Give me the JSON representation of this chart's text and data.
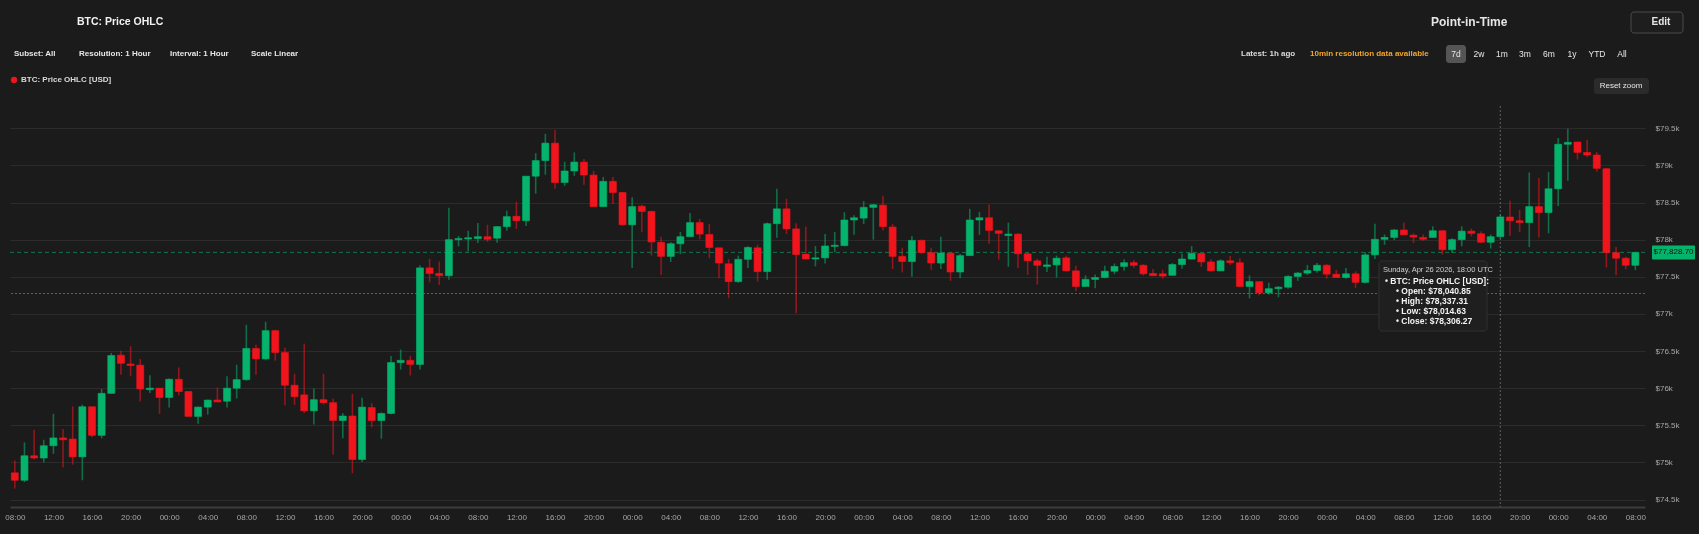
{
  "chart_data": {
    "type": "candlestick",
    "title": "BTC: Price OHLC",
    "legend": "top left",
    "grid": "y",
    "x": [
      "2026-04-20T08:00",
      "2026-04-20T09:00",
      "2026-04-20T10:00",
      "2026-04-20T11:00",
      "2026-04-20T12:00",
      "2026-04-20T13:00",
      "2026-04-20T14:00",
      "2026-04-20T15:00",
      "2026-04-20T16:00",
      "2026-04-20T17:00",
      "2026-04-20T18:00",
      "2026-04-20T19:00",
      "2026-04-20T20:00",
      "2026-04-20T21:00",
      "2026-04-20T22:00",
      "2026-04-20T23:00",
      "2026-04-21T00:00",
      "2026-04-21T01:00",
      "2026-04-21T02:00",
      "2026-04-21T03:00",
      "2026-04-21T04:00",
      "2026-04-21T05:00",
      "2026-04-21T06:00",
      "2026-04-21T07:00",
      "2026-04-21T08:00",
      "2026-04-21T09:00",
      "2026-04-21T10:00",
      "2026-04-21T11:00",
      "2026-04-21T12:00",
      "2026-04-21T13:00",
      "2026-04-21T14:00",
      "2026-04-21T15:00",
      "2026-04-21T16:00",
      "2026-04-21T17:00",
      "2026-04-21T18:00",
      "2026-04-21T19:00",
      "2026-04-21T20:00",
      "2026-04-21T21:00",
      "2026-04-21T22:00",
      "2026-04-21T23:00",
      "2026-04-22T00:00",
      "2026-04-22T01:00",
      "2026-04-22T02:00",
      "2026-04-22T03:00",
      "2026-04-22T04:00",
      "2026-04-22T05:00",
      "2026-04-22T06:00",
      "2026-04-22T07:00",
      "2026-04-22T08:00",
      "2026-04-22T09:00",
      "2026-04-22T10:00",
      "2026-04-22T11:00",
      "2026-04-22T12:00",
      "2026-04-22T13:00",
      "2026-04-22T14:00",
      "2026-04-22T15:00",
      "2026-04-22T16:00",
      "2026-04-22T17:00",
      "2026-04-22T18:00",
      "2026-04-22T19:00",
      "2026-04-22T20:00",
      "2026-04-22T21:00",
      "2026-04-22T22:00",
      "2026-04-22T23:00",
      "2026-04-23T00:00",
      "2026-04-23T01:00",
      "2026-04-23T02:00",
      "2026-04-23T03:00",
      "2026-04-23T04:00",
      "2026-04-23T05:00",
      "2026-04-23T06:00",
      "2026-04-23T07:00",
      "2026-04-23T08:00",
      "2026-04-23T09:00",
      "2026-04-23T10:00",
      "2026-04-23T11:00",
      "2026-04-23T12:00",
      "2026-04-23T13:00",
      "2026-04-23T14:00",
      "2026-04-23T15:00",
      "2026-04-23T16:00",
      "2026-04-23T17:00",
      "2026-04-23T18:00",
      "2026-04-23T19:00",
      "2026-04-23T20:00",
      "2026-04-23T21:00",
      "2026-04-23T22:00",
      "2026-04-23T23:00",
      "2026-04-24T00:00",
      "2026-04-24T01:00",
      "2026-04-24T02:00",
      "2026-04-24T03:00",
      "2026-04-24T04:00",
      "2026-04-24T05:00",
      "2026-04-24T06:00",
      "2026-04-24T07:00",
      "2026-04-24T08:00",
      "2026-04-24T09:00",
      "2026-04-24T10:00",
      "2026-04-24T11:00",
      "2026-04-24T12:00",
      "2026-04-24T13:00",
      "2026-04-24T14:00",
      "2026-04-24T15:00",
      "2026-04-24T16:00",
      "2026-04-24T17:00",
      "2026-04-24T18:00",
      "2026-04-24T19:00",
      "2026-04-24T20:00",
      "2026-04-24T21:00",
      "2026-04-24T22:00",
      "2026-04-24T23:00",
      "2026-04-25T00:00",
      "2026-04-25T01:00",
      "2026-04-25T02:00",
      "2026-04-25T03:00",
      "2026-04-25T04:00",
      "2026-04-25T05:00",
      "2026-04-25T06:00",
      "2026-04-25T07:00",
      "2026-04-25T08:00",
      "2026-04-25T09:00",
      "2026-04-25T10:00",
      "2026-04-25T11:00",
      "2026-04-25T12:00",
      "2026-04-25T13:00",
      "2026-04-25T14:00",
      "2026-04-25T15:00",
      "2026-04-25T16:00",
      "2026-04-25T17:00",
      "2026-04-25T18:00",
      "2026-04-25T19:00",
      "2026-04-25T20:00",
      "2026-04-25T21:00",
      "2026-04-25T22:00",
      "2026-04-25T23:00",
      "2026-04-26T00:00",
      "2026-04-26T01:00",
      "2026-04-26T02:00",
      "2026-04-26T03:00",
      "2026-04-26T04:00",
      "2026-04-26T05:00",
      "2026-04-26T06:00",
      "2026-04-26T07:00",
      "2026-04-26T08:00",
      "2026-04-26T09:00",
      "2026-04-26T10:00",
      "2026-04-26T11:00",
      "2026-04-26T12:00",
      "2026-04-26T13:00",
      "2026-04-26T14:00",
      "2026-04-26T15:00",
      "2026-04-26T16:00",
      "2026-04-26T17:00",
      "2026-04-26T18:00",
      "2026-04-26T19:00",
      "2026-04-26T20:00",
      "2026-04-26T21:00",
      "2026-04-26T22:00",
      "2026-04-26T23:00",
      "2026-04-27T00:00",
      "2026-04-27T01:00",
      "2026-04-27T02:00",
      "2026-04-27T03:00",
      "2026-04-27T04:00",
      "2026-04-27T05:00",
      "2026-04-27T06:00",
      "2026-04-27T07:00",
      "2026-04-27T08:00"
    ],
    "series": [
      {
        "name": "BTC: Price OHLC [USD]",
        "color": "#f0141c",
        "ohlc": [
          [
            74860,
            75025,
            74650,
            74760
          ],
          [
            74760,
            75270,
            74735,
            75090
          ],
          [
            75090,
            75440,
            75040,
            75060
          ],
          [
            75060,
            75305,
            75000,
            75225
          ],
          [
            75225,
            75655,
            75115,
            75330
          ],
          [
            75330,
            75450,
            74935,
            75305
          ],
          [
            75315,
            75755,
            74970,
            75075
          ],
          [
            75075,
            75780,
            74760,
            75750
          ],
          [
            75750,
            75750,
            75340,
            75365
          ],
          [
            75365,
            75990,
            75325,
            75930
          ],
          [
            75930,
            76475,
            75930,
            76440
          ],
          [
            76445,
            76505,
            76180,
            76335
          ],
          [
            76325,
            76565,
            76160,
            76305
          ],
          [
            76310,
            76395,
            75820,
            75990
          ],
          [
            75980,
            76175,
            75935,
            76000
          ],
          [
            76000,
            76000,
            75655,
            75875
          ],
          [
            75875,
            76130,
            75740,
            76120
          ],
          [
            76120,
            76280,
            75905,
            75955
          ],
          [
            75955,
            75955,
            75620,
            75620
          ],
          [
            75620,
            75755,
            75520,
            75745
          ],
          [
            75745,
            75845,
            75645,
            75840
          ],
          [
            75840,
            76010,
            75815,
            75815
          ],
          [
            75825,
            76160,
            75740,
            76000
          ],
          [
            76000,
            76315,
            75860,
            76115
          ],
          [
            76115,
            76855,
            76100,
            76535
          ],
          [
            76535,
            76585,
            76180,
            76395
          ],
          [
            76395,
            76895,
            76375,
            76775
          ],
          [
            76775,
            76785,
            76370,
            76480
          ],
          [
            76480,
            76545,
            75770,
            76040
          ],
          [
            76040,
            76195,
            75775,
            75885
          ],
          [
            75910,
            76600,
            75665,
            75695
          ],
          [
            75695,
            75995,
            75510,
            75845
          ],
          [
            75845,
            76195,
            75780,
            75805
          ],
          [
            75805,
            75860,
            75105,
            75565
          ],
          [
            75565,
            75665,
            75325,
            75625
          ],
          [
            75625,
            75925,
            74855,
            75040
          ],
          [
            75040,
            75870,
            75005,
            75745
          ],
          [
            75740,
            75800,
            75475,
            75565
          ],
          [
            75565,
            75670,
            75320,
            75660
          ],
          [
            75660,
            76435,
            75650,
            76345
          ],
          [
            76345,
            76520,
            76250,
            76375
          ],
          [
            76375,
            76435,
            76170,
            76320
          ],
          [
            76320,
            77655,
            76250,
            77620
          ],
          [
            77620,
            77740,
            77425,
            77545
          ],
          [
            77545,
            77705,
            77390,
            77515
          ],
          [
            77515,
            78430,
            77460,
            78000
          ],
          [
            78000,
            78050,
            77910,
            78015
          ],
          [
            78010,
            78120,
            77840,
            78025
          ],
          [
            78015,
            78225,
            77955,
            78040
          ],
          [
            78040,
            78200,
            77970,
            78005
          ],
          [
            78020,
            78185,
            77960,
            78175
          ],
          [
            78175,
            78390,
            78120,
            78310
          ],
          [
            78315,
            78510,
            78145,
            78255
          ],
          [
            78255,
            78855,
            78185,
            78855
          ],
          [
            78855,
            79165,
            78620,
            79065
          ],
          [
            79065,
            79425,
            78875,
            79300
          ],
          [
            79300,
            79480,
            78685,
            78770
          ],
          [
            78770,
            79050,
            78725,
            78925
          ],
          [
            78925,
            79175,
            78860,
            79045
          ],
          [
            79045,
            79085,
            78740,
            78870
          ],
          [
            78870,
            78925,
            78445,
            78445
          ],
          [
            78445,
            78845,
            78445,
            78785
          ],
          [
            78785,
            78845,
            78480,
            78635
          ],
          [
            78635,
            78645,
            78185,
            78200
          ],
          [
            78200,
            78570,
            77620,
            78445
          ],
          [
            78450,
            78470,
            78100,
            78380
          ],
          [
            78380,
            78390,
            77785,
            77970
          ],
          [
            77965,
            78040,
            77525,
            77775
          ],
          [
            77775,
            77965,
            77700,
            77945
          ],
          [
            77945,
            78105,
            77805,
            78040
          ],
          [
            78040,
            78360,
            78040,
            78230
          ],
          [
            78230,
            78280,
            78005,
            78075
          ],
          [
            78070,
            78210,
            77750,
            77895
          ],
          [
            77890,
            77890,
            77480,
            77685
          ],
          [
            77675,
            77740,
            77215,
            77435
          ],
          [
            77435,
            77785,
            77420,
            77735
          ],
          [
            77735,
            77910,
            77620,
            77895
          ],
          [
            77890,
            77935,
            77435,
            77570
          ],
          [
            77570,
            78230,
            77460,
            78215
          ],
          [
            78215,
            78685,
            78025,
            78415
          ],
          [
            78415,
            78550,
            78075,
            78145
          ],
          [
            78145,
            78220,
            77010,
            77800
          ],
          [
            77805,
            78175,
            77730,
            77740
          ],
          [
            77740,
            77915,
            77640,
            77755
          ],
          [
            77755,
            78075,
            77680,
            77915
          ],
          [
            77910,
            78105,
            77830,
            77925
          ],
          [
            77920,
            78370,
            77910,
            78265
          ],
          [
            78265,
            78330,
            78065,
            78295
          ],
          [
            78290,
            78520,
            78210,
            78435
          ],
          [
            78435,
            78480,
            78000,
            78470
          ],
          [
            78465,
            78590,
            78125,
            78175
          ],
          [
            78170,
            78210,
            77605,
            77775
          ],
          [
            77775,
            77890,
            77560,
            77705
          ],
          [
            77705,
            78050,
            77500,
            77990
          ],
          [
            77990,
            78005,
            77810,
            77825
          ],
          [
            77825,
            77890,
            77595,
            77685
          ],
          [
            77685,
            78040,
            77605,
            77820
          ],
          [
            77820,
            77825,
            77445,
            77565
          ],
          [
            77565,
            77810,
            77480,
            77785
          ],
          [
            77785,
            78415,
            77785,
            78265
          ],
          [
            78265,
            78375,
            78065,
            78295
          ],
          [
            78295,
            78475,
            77945,
            78125
          ],
          [
            78120,
            78120,
            77730,
            78085
          ],
          [
            78055,
            78230,
            77635,
            78075
          ],
          [
            78075,
            78085,
            77620,
            77810
          ],
          [
            77810,
            77825,
            77525,
            77715
          ],
          [
            77715,
            77745,
            77395,
            77655
          ],
          [
            77640,
            77770,
            77565,
            77660
          ],
          [
            77660,
            77785,
            77490,
            77750
          ],
          [
            77755,
            77785,
            77570,
            77580
          ],
          [
            77580,
            77650,
            77310,
            77370
          ],
          [
            77370,
            77520,
            77370,
            77465
          ],
          [
            77465,
            77530,
            77345,
            77490
          ],
          [
            77490,
            77650,
            77480,
            77575
          ],
          [
            77575,
            77680,
            77535,
            77640
          ],
          [
            77640,
            77735,
            77580,
            77690
          ],
          [
            77690,
            77725,
            77620,
            77655
          ],
          [
            77655,
            77670,
            77515,
            77540
          ],
          [
            77545,
            77605,
            77515,
            77515
          ],
          [
            77540,
            77595,
            77475,
            77510
          ],
          [
            77520,
            77685,
            77515,
            77665
          ],
          [
            77665,
            77810,
            77610,
            77740
          ],
          [
            77740,
            77915,
            77735,
            77815
          ],
          [
            77815,
            77815,
            77635,
            77700
          ],
          [
            77700,
            77735,
            77570,
            77580
          ],
          [
            77580,
            77735,
            77580,
            77715
          ],
          [
            77715,
            77780,
            77660,
            77690
          ],
          [
            77690,
            77750,
            77360,
            77370
          ],
          [
            77370,
            77520,
            77210,
            77435
          ],
          [
            77435,
            77435,
            77250,
            77285
          ],
          [
            77285,
            77420,
            77260,
            77340
          ],
          [
            77340,
            77375,
            77225,
            77360
          ],
          [
            77360,
            77520,
            77340,
            77505
          ],
          [
            77505,
            77565,
            77445,
            77550
          ],
          [
            77550,
            77660,
            77525,
            77585
          ],
          [
            77585,
            77685,
            77555,
            77655
          ],
          [
            77655,
            77675,
            77475,
            77535
          ],
          [
            77535,
            77595,
            77490,
            77490
          ],
          [
            77490,
            77620,
            77475,
            77540
          ],
          [
            77540,
            77575,
            77350,
            77425
          ],
          [
            77425,
            77830,
            77410,
            77795
          ],
          [
            77795,
            78215,
            77740,
            78005
          ],
          [
            78005,
            78070,
            77930,
            78030
          ],
          [
            78030,
            78145,
            77995,
            78130
          ],
          [
            78130,
            78230,
            78065,
            78065
          ],
          [
            78060,
            78085,
            77955,
            78035
          ],
          [
            78030,
            78070,
            77985,
            78005
          ],
          [
            78030,
            78180,
            78030,
            78120
          ],
          [
            78120,
            78130,
            77800,
            77865
          ],
          [
            77865,
            78020,
            77820,
            78000
          ],
          [
            78000,
            78180,
            77910,
            78115
          ],
          [
            78115,
            78150,
            78045,
            78085
          ],
          [
            78080,
            78115,
            77960,
            77965
          ],
          [
            77965,
            78070,
            77880,
            78040
          ],
          [
            78040.85,
            78337.31,
            78014.63,
            78306.27
          ],
          [
            78305,
            78525,
            78050,
            78255
          ],
          [
            78255,
            78400,
            78100,
            78230
          ],
          [
            78230,
            78905,
            77900,
            78445
          ],
          [
            78445,
            78830,
            78030,
            78365
          ],
          [
            78365,
            78910,
            78085,
            78685
          ],
          [
            78685,
            79370,
            78455,
            79285
          ],
          [
            79285,
            79495,
            78795,
            79310
          ],
          [
            79315,
            79320,
            79080,
            79175
          ],
          [
            79175,
            79345,
            79110,
            79140
          ],
          [
            79140,
            79180,
            78915,
            78960
          ],
          [
            78955,
            78965,
            77625,
            77825
          ],
          [
            77825,
            77900,
            77520,
            77750
          ],
          [
            77750,
            77770,
            77600,
            77655
          ],
          [
            77655,
            77828.7,
            77590,
            77828.7
          ]
        ],
        "colors": [
          "#f0141c",
          "#05b36c",
          "#f0141c",
          "#05b36c",
          "#05b36c",
          "#f0141c",
          "#f0141c",
          "#05b36c",
          "#f0141c",
          "#05b36c",
          "#05b36c",
          "#f0141c",
          "#f0141c",
          "#f0141c",
          "#05b36c",
          "#f0141c",
          "#05b36c",
          "#f0141c",
          "#f0141c",
          "#05b36c",
          "#05b36c",
          "#f0141c",
          "#05b36c",
          "#05b36c",
          "#05b36c",
          "#f0141c",
          "#05b36c",
          "#f0141c",
          "#f0141c",
          "#f0141c",
          "#f0141c",
          "#05b36c",
          "#f0141c",
          "#f0141c",
          "#05b36c",
          "#f0141c",
          "#05b36c",
          "#f0141c",
          "#05b36c",
          "#05b36c",
          "#05b36c",
          "#f0141c",
          "#05b36c",
          "#f0141c",
          "#f0141c",
          "#05b36c",
          "#05b36c",
          "#05b36c",
          "#05b36c",
          "#f0141c",
          "#05b36c",
          "#05b36c",
          "#f0141c",
          "#05b36c",
          "#05b36c",
          "#05b36c",
          "#f0141c",
          "#05b36c",
          "#05b36c",
          "#f0141c",
          "#f0141c",
          "#05b36c",
          "#f0141c",
          "#f0141c",
          "#05b36c",
          "#f0141c",
          "#f0141c",
          "#f0141c",
          "#05b36c",
          "#05b36c",
          "#05b36c",
          "#f0141c",
          "#f0141c",
          "#f0141c",
          "#f0141c",
          "#05b36c",
          "#05b36c",
          "#f0141c",
          "#05b36c",
          "#05b36c",
          "#f0141c",
          "#f0141c",
          "#f0141c",
          "#05b36c",
          "#05b36c",
          "#05b36c",
          "#05b36c",
          "#05b36c",
          "#05b36c",
          "#05b36c",
          "#f0141c",
          "#f0141c",
          "#f0141c",
          "#05b36c",
          "#f0141c",
          "#f0141c",
          "#05b36c",
          "#f0141c",
          "#05b36c",
          "#05b36c",
          "#05b36c",
          "#f0141c",
          "#f0141c",
          "#05b36c",
          "#f0141c",
          "#f0141c",
          "#f0141c",
          "#05b36c",
          "#05b36c",
          "#f0141c",
          "#f0141c",
          "#05b36c",
          "#05b36c",
          "#05b36c",
          "#05b36c",
          "#05b36c",
          "#f0141c",
          "#f0141c",
          "#f0141c",
          "#f0141c",
          "#05b36c",
          "#05b36c",
          "#05b36c",
          "#f0141c",
          "#f0141c",
          "#05b36c",
          "#f0141c",
          "#f0141c",
          "#05b36c",
          "#f0141c",
          "#05b36c",
          "#05b36c",
          "#05b36c",
          "#05b36c",
          "#05b36c",
          "#05b36c",
          "#f0141c",
          "#f0141c",
          "#05b36c",
          "#f0141c",
          "#05b36c",
          "#05b36c",
          "#05b36c",
          "#05b36c",
          "#f0141c",
          "#f0141c",
          "#f0141c",
          "#05b36c",
          "#f0141c",
          "#05b36c",
          "#05b36c",
          "#f0141c",
          "#f0141c",
          "#05b36c",
          "#05b36c",
          "#f0141c",
          "#f0141c",
          "#05b36c",
          "#f0141c",
          "#05b36c",
          "#05b36c",
          "#05b36c",
          "#f0141c",
          "#f0141c",
          "#f0141c",
          "#f0141c",
          "#f0141c",
          "#f0141c",
          "#05b36c"
        ]
      }
    ],
    "xlim": [
      "2026-04-20T07:30",
      "2026-04-27T09:00"
    ],
    "xticks": [
      {
        "value": "2026-04-20T08:00",
        "label": "08:00"
      },
      {
        "value": "2026-04-20T12:00",
        "label": "12:00"
      },
      {
        "value": "2026-04-20T16:00",
        "label": "16:00"
      },
      {
        "value": "2026-04-20T20:00",
        "label": "20:00"
      },
      {
        "value": "2026-04-21T00:00",
        "label": "00:00"
      },
      {
        "value": "2026-04-21T04:00",
        "label": "04:00"
      },
      {
        "value": "2026-04-21T08:00",
        "label": "08:00"
      },
      {
        "value": "2026-04-21T12:00",
        "label": "12:00"
      },
      {
        "value": "2026-04-21T16:00",
        "label": "16:00"
      },
      {
        "value": "2026-04-21T20:00",
        "label": "20:00"
      },
      {
        "value": "2026-04-22T00:00",
        "label": "00:00"
      },
      {
        "value": "2026-04-22T04:00",
        "label": "04:00"
      },
      {
        "value": "2026-04-22T08:00",
        "label": "08:00"
      },
      {
        "value": "2026-04-22T12:00",
        "label": "12:00"
      },
      {
        "value": "2026-04-22T16:00",
        "label": "16:00"
      },
      {
        "value": "2026-04-22T20:00",
        "label": "20:00"
      },
      {
        "value": "2026-04-23T00:00",
        "label": "00:00"
      },
      {
        "value": "2026-04-23T04:00",
        "label": "04:00"
      },
      {
        "value": "2026-04-23T08:00",
        "label": "08:00"
      },
      {
        "value": "2026-04-23T12:00",
        "label": "12:00"
      },
      {
        "value": "2026-04-23T16:00",
        "label": "16:00"
      },
      {
        "value": "2026-04-23T20:00",
        "label": "20:00"
      },
      {
        "value": "2026-04-24T00:00",
        "label": "00:00"
      },
      {
        "value": "2026-04-24T04:00",
        "label": "04:00"
      },
      {
        "value": "2026-04-24T08:00",
        "label": "08:00"
      },
      {
        "value": "2026-04-24T12:00",
        "label": "12:00"
      },
      {
        "value": "2026-04-24T16:00",
        "label": "16:00"
      },
      {
        "value": "2026-04-24T20:00",
        "label": "20:00"
      },
      {
        "value": "2026-04-25T00:00",
        "label": "00:00"
      },
      {
        "value": "2026-04-25T04:00",
        "label": "04:00"
      },
      {
        "value": "2026-04-25T08:00",
        "label": "08:00"
      },
      {
        "value": "2026-04-25T12:00",
        "label": "12:00"
      },
      {
        "value": "2026-04-25T16:00",
        "label": "16:00"
      },
      {
        "value": "2026-04-25T20:00",
        "label": "20:00"
      },
      {
        "value": "2026-04-26T00:00",
        "label": "00:00"
      },
      {
        "value": "2026-04-26T04:00",
        "label": "04:00"
      },
      {
        "value": "2026-04-26T08:00",
        "label": "08:00"
      },
      {
        "value": "2026-04-26T12:00",
        "label": "12:00"
      },
      {
        "value": "2026-04-26T16:00",
        "label": "16:00"
      },
      {
        "value": "2026-04-26T20:00",
        "label": "20:00"
      },
      {
        "value": "2026-04-27T00:00",
        "label": "00:00"
      },
      {
        "value": "2026-04-27T04:00",
        "label": "04:00"
      },
      {
        "value": "2026-04-27T08:00",
        "label": "08:00"
      }
    ],
    "ylim": [
      74400,
      79800
    ],
    "yticks": [
      {
        "value": 74500,
        "label": "$74.5k"
      },
      {
        "value": 75000,
        "label": "$75k"
      },
      {
        "value": 75500,
        "label": "$75.5k"
      },
      {
        "value": 76000,
        "label": "$76k"
      },
      {
        "value": 76500,
        "label": "$76.5k"
      },
      {
        "value": 77000,
        "label": "$77k"
      },
      {
        "value": 77500,
        "label": "$77.5k"
      },
      {
        "value": 78000,
        "label": "$78k"
      },
      {
        "value": 78500,
        "label": "$78.5k"
      },
      {
        "value": 79000,
        "label": "$79k"
      },
      {
        "value": 79500,
        "label": "$79.5k"
      }
    ],
    "ref_lines": [
      {
        "axis": "y",
        "value": 77828.7,
        "label": "$77,828.70",
        "color": "#05b36c",
        "line_style": "dashed"
      },
      {
        "axis": "y",
        "value": 77275,
        "color": "#8a95a2",
        "line_style": "dotted"
      },
      {
        "axis": "x",
        "value": "2026-04-26T18:00",
        "color": "#8a95a2",
        "line_style": "dotted"
      }
    ],
    "annotations": [
      "Point-in-Time",
      "Edit",
      "Subset: All",
      "Resolution: 1 Hour",
      "Interval: 1 Hour",
      "Scale Linear",
      "Latest: 1h ago",
      "10min resolution data available",
      "7d",
      "2w",
      "1m",
      "3m",
      "6m",
      "1y",
      "YTD",
      "All",
      "Reset zoom",
      "Sunday, Apr 26 2026, 18:00 UTC\n• BTC: Price OHLC [USD]:\n• Open: $78,040.85\n• High: $78,337.31\n• Low: $78,014.63\n• Close: $78,306.27"
    ]
  }
}
